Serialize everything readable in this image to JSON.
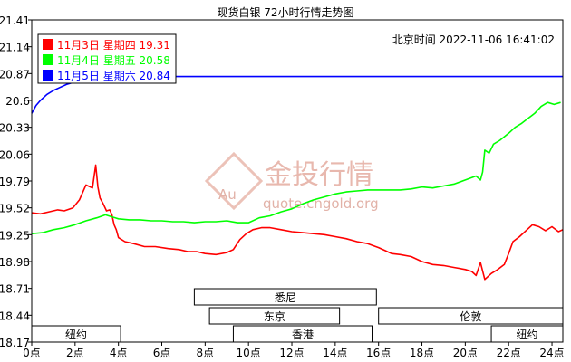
{
  "chart_data": {
    "type": "line",
    "title": "现货白银 72小时行情走势图",
    "timestamp": "北京时间 2022-11-06 16:41:02",
    "y_ticks": [
      "21.41",
      "21.14",
      "20.87",
      "20.6",
      "20.33",
      "20.06",
      "19.79",
      "19.52",
      "19.25",
      "18.98",
      "18.71",
      "18.44",
      "18.17"
    ],
    "ylim": [
      18.17,
      21.41
    ],
    "x_ticks": [
      "0点",
      "2点",
      "4点",
      "6点",
      "8点",
      "10点",
      "12点",
      "14点",
      "16点",
      "18点",
      "20点",
      "22点",
      "24点"
    ],
    "xlim": [
      0,
      24.5
    ],
    "grid": false,
    "legend_position": "top-left",
    "series": [
      {
        "name": "11月3日 星期四",
        "value_label": "19.31",
        "color": "#ff0000",
        "points": [
          [
            0,
            19.47
          ],
          [
            0.4,
            19.46
          ],
          [
            0.8,
            19.48
          ],
          [
            1.2,
            19.5
          ],
          [
            1.5,
            19.49
          ],
          [
            1.9,
            19.52
          ],
          [
            2.2,
            19.6
          ],
          [
            2.5,
            19.75
          ],
          [
            2.8,
            19.72
          ],
          [
            2.95,
            19.95
          ],
          [
            3.05,
            19.73
          ],
          [
            3.15,
            19.62
          ],
          [
            3.3,
            19.56
          ],
          [
            3.45,
            19.49
          ],
          [
            3.6,
            19.5
          ],
          [
            3.7,
            19.45
          ],
          [
            3.8,
            19.35
          ],
          [
            3.9,
            19.3
          ],
          [
            4.0,
            19.22
          ],
          [
            4.3,
            19.18
          ],
          [
            4.7,
            19.16
          ],
          [
            5.2,
            19.13
          ],
          [
            5.7,
            19.13
          ],
          [
            6.3,
            19.11
          ],
          [
            6.8,
            19.1
          ],
          [
            7.2,
            19.08
          ],
          [
            7.6,
            19.08
          ],
          [
            8.0,
            19.06
          ],
          [
            8.5,
            19.05
          ],
          [
            9.0,
            19.07
          ],
          [
            9.3,
            19.1
          ],
          [
            9.6,
            19.2
          ],
          [
            9.9,
            19.26
          ],
          [
            10.2,
            19.3
          ],
          [
            10.6,
            19.32
          ],
          [
            11.0,
            19.32
          ],
          [
            11.5,
            19.3
          ],
          [
            12.0,
            19.28
          ],
          [
            12.5,
            19.27
          ],
          [
            13.0,
            19.26
          ],
          [
            13.5,
            19.25
          ],
          [
            14.0,
            19.23
          ],
          [
            14.5,
            19.21
          ],
          [
            15.0,
            19.18
          ],
          [
            15.5,
            19.16
          ],
          [
            16.0,
            19.12
          ],
          [
            16.3,
            19.09
          ],
          [
            16.6,
            19.06
          ],
          [
            17.0,
            19.05
          ],
          [
            17.5,
            19.03
          ],
          [
            18.0,
            18.98
          ],
          [
            18.5,
            18.95
          ],
          [
            19.0,
            18.94
          ],
          [
            19.5,
            18.92
          ],
          [
            20.0,
            18.9
          ],
          [
            20.3,
            18.88
          ],
          [
            20.5,
            18.84
          ],
          [
            20.7,
            18.97
          ],
          [
            20.9,
            18.8
          ],
          [
            21.2,
            18.86
          ],
          [
            21.5,
            18.9
          ],
          [
            21.8,
            18.95
          ],
          [
            22.0,
            19.06
          ],
          [
            22.2,
            19.18
          ],
          [
            22.5,
            19.23
          ],
          [
            22.8,
            19.29
          ],
          [
            23.1,
            19.35
          ],
          [
            23.4,
            19.33
          ],
          [
            23.7,
            19.29
          ],
          [
            24.0,
            19.33
          ],
          [
            24.3,
            19.28
          ],
          [
            24.5,
            19.3
          ]
        ]
      },
      {
        "name": "11月4日 星期五",
        "value_label": "20.58",
        "color": "#00ff00",
        "points": [
          [
            0,
            19.26
          ],
          [
            0.5,
            19.27
          ],
          [
            1.0,
            19.3
          ],
          [
            1.5,
            19.32
          ],
          [
            2.0,
            19.35
          ],
          [
            2.5,
            19.39
          ],
          [
            3.0,
            19.42
          ],
          [
            3.4,
            19.45
          ],
          [
            3.7,
            19.43
          ],
          [
            4.0,
            19.41
          ],
          [
            4.5,
            19.4
          ],
          [
            5.0,
            19.4
          ],
          [
            5.5,
            19.39
          ],
          [
            6.0,
            19.39
          ],
          [
            6.5,
            19.38
          ],
          [
            7.0,
            19.38
          ],
          [
            7.5,
            19.37
          ],
          [
            8.0,
            19.38
          ],
          [
            8.5,
            19.38
          ],
          [
            9.0,
            19.39
          ],
          [
            9.5,
            19.37
          ],
          [
            10.0,
            19.37
          ],
          [
            10.5,
            19.42
          ],
          [
            11.0,
            19.44
          ],
          [
            11.5,
            19.48
          ],
          [
            12.0,
            19.51
          ],
          [
            12.5,
            19.56
          ],
          [
            13.0,
            19.6
          ],
          [
            13.5,
            19.63
          ],
          [
            14.0,
            19.66
          ],
          [
            14.5,
            19.68
          ],
          [
            15.0,
            19.69
          ],
          [
            15.5,
            19.7
          ],
          [
            16.0,
            19.7
          ],
          [
            16.5,
            19.7
          ],
          [
            17.0,
            19.7
          ],
          [
            17.5,
            19.71
          ],
          [
            18.0,
            19.73
          ],
          [
            18.5,
            19.72
          ],
          [
            19.0,
            19.74
          ],
          [
            19.5,
            19.76
          ],
          [
            20.0,
            19.8
          ],
          [
            20.5,
            19.84
          ],
          [
            20.7,
            19.8
          ],
          [
            20.8,
            19.88
          ],
          [
            20.9,
            20.1
          ],
          [
            21.1,
            20.07
          ],
          [
            21.3,
            20.16
          ],
          [
            21.6,
            20.2
          ],
          [
            22.0,
            20.27
          ],
          [
            22.3,
            20.33
          ],
          [
            22.6,
            20.37
          ],
          [
            22.9,
            20.42
          ],
          [
            23.2,
            20.47
          ],
          [
            23.5,
            20.54
          ],
          [
            23.8,
            20.58
          ],
          [
            24.1,
            20.56
          ],
          [
            24.4,
            20.58
          ]
        ]
      },
      {
        "name": "11月5日 星期六",
        "value_label": "20.84",
        "color": "#0000ff",
        "points": [
          [
            0,
            20.47
          ],
          [
            0.2,
            20.55
          ],
          [
            0.4,
            20.6
          ],
          [
            0.7,
            20.66
          ],
          [
            1.0,
            20.7
          ],
          [
            1.3,
            20.73
          ],
          [
            1.6,
            20.76
          ],
          [
            1.9,
            20.78
          ],
          [
            2.2,
            20.8
          ],
          [
            2.5,
            20.8
          ],
          [
            2.8,
            20.83
          ],
          [
            3.1,
            20.81
          ],
          [
            3.4,
            20.85
          ],
          [
            3.7,
            20.82
          ],
          [
            4.0,
            20.84
          ],
          [
            4.4,
            20.85
          ],
          [
            4.8,
            20.84
          ],
          [
            5.2,
            20.83
          ],
          [
            5.5,
            20.84
          ],
          [
            5.8,
            20.82
          ],
          [
            6.0,
            20.84
          ],
          [
            24.5,
            20.84
          ]
        ]
      }
    ],
    "markets": [
      {
        "name": "悉尼",
        "start": 7.5,
        "end": 15.9,
        "row": 0
      },
      {
        "name": "东京",
        "start": 8.2,
        "end": 14.2,
        "row": 1
      },
      {
        "name": "伦敦",
        "start": 16.0,
        "end": 24.5,
        "row": 1
      },
      {
        "name": "纽约",
        "start": 0,
        "end": 4.1,
        "row": 2
      },
      {
        "name": "香港",
        "start": 9.3,
        "end": 15.7,
        "row": 2
      },
      {
        "name": "纽约",
        "start": 21.2,
        "end": 24.5,
        "row": 2
      }
    ],
    "watermark": {
      "logo_text": "Au",
      "brand": "金投行情",
      "url": "quote.cngold.org"
    }
  }
}
